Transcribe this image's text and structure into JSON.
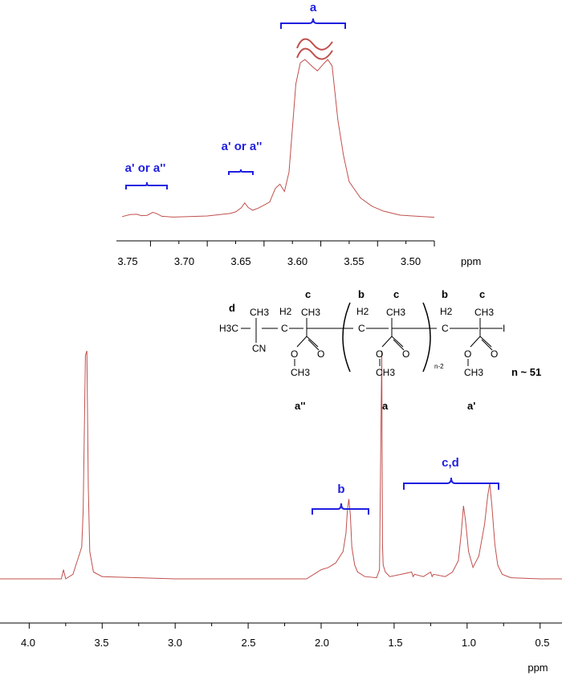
{
  "chart_data": [
    {
      "type": "line",
      "xlim": [
        3.78,
        3.5
      ],
      "xticks": [
        "3.75",
        "3.70",
        "3.65",
        "3.60",
        "3.55",
        "3.50"
      ],
      "xunit": "ppm",
      "line_color": "#c0504d",
      "series": [
        {
          "x": [
            3.775,
            3.768,
            3.762,
            3.758,
            3.753,
            3.748,
            3.745,
            3.74,
            3.73,
            3.7,
            3.68,
            3.675,
            3.67,
            3.667,
            3.664,
            3.66,
            3.655,
            3.645,
            3.64,
            3.636,
            3.632,
            3.628,
            3.622,
            3.618,
            3.614,
            3.608,
            3.603,
            3.598,
            3.594,
            3.59,
            3.585,
            3.58,
            3.575,
            3.565,
            3.555,
            3.545,
            3.53,
            3.5
          ],
          "y": [
            0.6,
            1.8,
            2.0,
            1.2,
            1.4,
            3.2,
            2.6,
            0.8,
            0.3,
            1.0,
            2.5,
            3.5,
            6.0,
            9.0,
            6.2,
            4.5,
            5.8,
            9.5,
            18.0,
            20.5,
            16.0,
            28.0,
            82.0,
            95.0,
            97.0,
            93.0,
            90.0,
            94.0,
            97.0,
            93.0,
            60.0,
            38.0,
            22.0,
            12.0,
            7.0,
            4.0,
            1.5,
            0.2
          ]
        }
      ],
      "annotations": [
        {
          "text": "a' or a''",
          "from": 3.758,
          "to": 3.735
        },
        {
          "text": "a' or a''",
          "from": 3.677,
          "to": 3.661
        },
        {
          "text": "a",
          "from": 3.632,
          "to": 3.578
        }
      ]
    },
    {
      "type": "line",
      "xlim": [
        4.2,
        0.35
      ],
      "xticks": [
        "4.0",
        "3.5",
        "3.0",
        "2.5",
        "2.0",
        "1.5",
        "1.0",
        "0.5"
      ],
      "xunit": "ppm",
      "line_color": "#c0504d",
      "series": [
        {
          "x": [
            4.2,
            3.78,
            3.765,
            3.75,
            3.7,
            3.68,
            3.66,
            3.64,
            3.63,
            3.615,
            3.605,
            3.595,
            3.585,
            3.56,
            3.5,
            3.0,
            2.5,
            2.1,
            2.05,
            2.0,
            1.95,
            1.9,
            1.87,
            1.85,
            1.83,
            1.82,
            1.81,
            1.8,
            1.79,
            1.77,
            1.75,
            1.7,
            1.62,
            1.6,
            1.585,
            1.58,
            1.575,
            1.56,
            1.53,
            1.45,
            1.38,
            1.37,
            1.36,
            1.3,
            1.25,
            1.24,
            1.23,
            1.15,
            1.1,
            1.06,
            1.04,
            1.025,
            1.01,
            0.99,
            0.96,
            0.92,
            0.88,
            0.86,
            0.845,
            0.83,
            0.81,
            0.79,
            0.76,
            0.7,
            0.5,
            0.35
          ],
          "y": [
            0,
            0,
            4,
            0,
            2,
            6,
            10,
            14,
            30,
            98,
            100,
            40,
            12,
            3,
            1,
            0,
            0,
            0,
            2,
            4,
            5,
            7,
            10,
            12,
            20,
            30,
            35,
            28,
            14,
            6,
            3,
            1,
            0.5,
            4,
            100,
            15,
            6,
            3,
            1,
            2,
            3,
            1,
            2,
            1,
            3,
            1,
            2,
            1,
            3,
            8,
            20,
            32,
            25,
            12,
            5,
            10,
            24,
            36,
            42,
            32,
            15,
            6,
            2,
            0.5,
            0,
            0
          ]
        }
      ],
      "annotations": [
        {
          "text": "b",
          "from": 2.05,
          "to": 1.66
        },
        {
          "text": "c,d",
          "from": 1.4,
          "to": 0.78
        }
      ]
    }
  ],
  "structure": {
    "labels_top": [
      "d",
      "c",
      "b",
      "c",
      "b",
      "c"
    ],
    "labels_bottom": [
      "a''",
      "a",
      "a'"
    ],
    "n_label": "n ~ 51",
    "atoms": {
      "h3c": "H3C",
      "ch3": "CH3",
      "h2": "H2",
      "c": "C",
      "cn": "CN",
      "o": "O",
      "i": "I",
      "sub": "n-2"
    }
  }
}
